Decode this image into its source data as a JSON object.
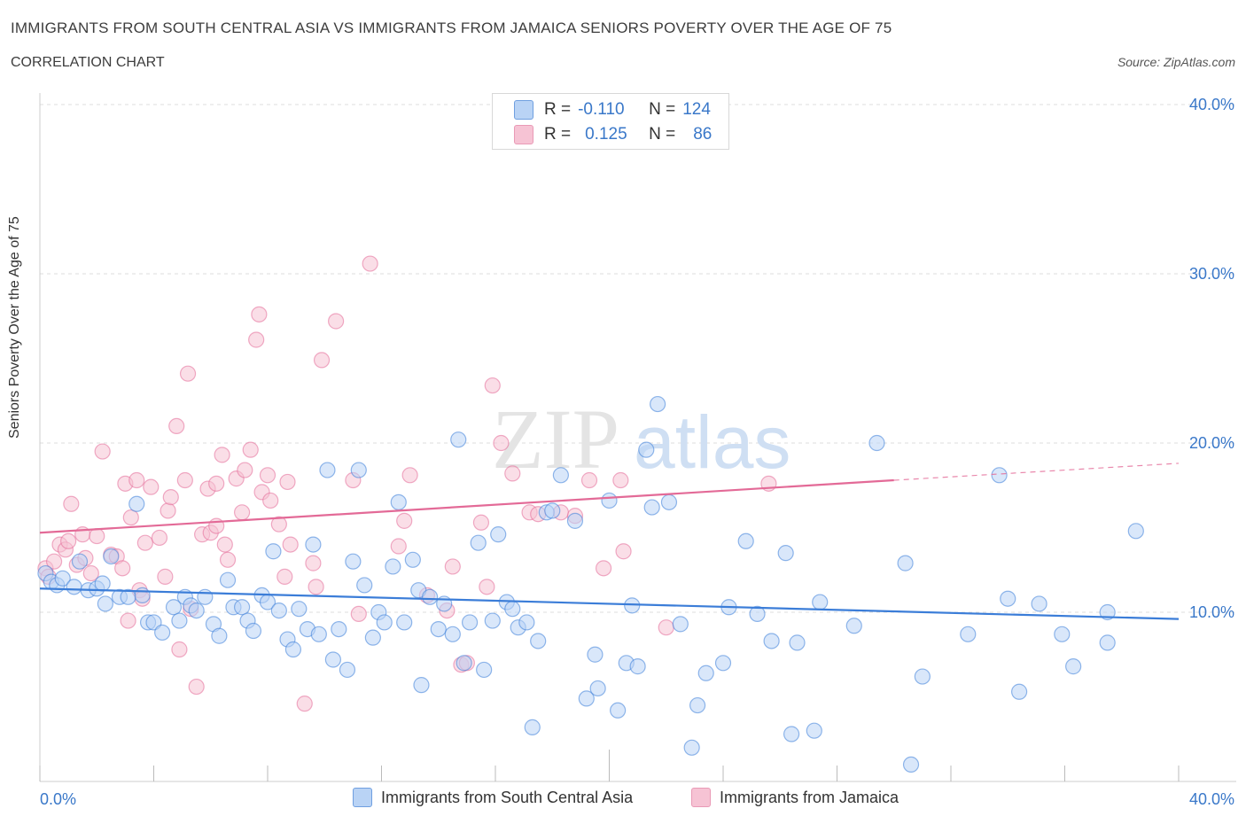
{
  "header": {
    "title": "IMMIGRANTS FROM SOUTH CENTRAL ASIA VS IMMIGRANTS FROM JAMAICA SENIORS POVERTY OVER THE AGE OF 75",
    "subtitle": "CORRELATION CHART",
    "source": "Source: ZipAtlas.com"
  },
  "watermark": {
    "zip": "ZIP",
    "atlas": "atlas"
  },
  "legend": {
    "blue": {
      "r_label": "R =",
      "r_value": "-0.110",
      "n_label": "N =",
      "n_value": "124"
    },
    "pink": {
      "r_label": "R =",
      "r_value": "0.125",
      "n_label": "N =",
      "n_value": "86"
    }
  },
  "colors": {
    "blue": "#3b7dd8",
    "blue_fill": "#b9d3f5",
    "pink": "#e36a97",
    "pink_fill": "#f6c3d4",
    "tick_text": "#3a78c9",
    "grid": "#dddddd"
  },
  "chart_data": {
    "type": "scatter",
    "title": "IMMIGRANTS FROM SOUTH CENTRAL ASIA VS IMMIGRANTS FROM JAMAICA SENIORS POVERTY OVER THE AGE OF 75",
    "ylabel": "Seniors Poverty Over the Age of 75",
    "xlabel": "",
    "xlim": [
      0,
      40
    ],
    "ylim": [
      0,
      40
    ],
    "x_tick_labels": [
      "0.0%",
      "40.0%"
    ],
    "y_tick_labels": [
      "10.0%",
      "20.0%",
      "30.0%",
      "40.0%"
    ],
    "y_ticks": [
      10,
      20,
      30,
      40
    ],
    "grid": true,
    "legend_position": "top-center",
    "series": [
      {
        "name": "Immigrants from South Central Asia",
        "color": "#3b7dd8",
        "trend": {
          "x": [
            0,
            40
          ],
          "y": [
            11.4,
            9.6
          ]
        },
        "points": [
          [
            0.2,
            12.3
          ],
          [
            0.4,
            11.8
          ],
          [
            0.6,
            11.6
          ],
          [
            0.8,
            12.0
          ],
          [
            1.2,
            11.5
          ],
          [
            1.4,
            13.0
          ],
          [
            1.7,
            11.3
          ],
          [
            2.0,
            11.4
          ],
          [
            2.2,
            11.7
          ],
          [
            2.3,
            10.5
          ],
          [
            2.5,
            13.3
          ],
          [
            2.8,
            10.9
          ],
          [
            3.1,
            10.9
          ],
          [
            3.4,
            16.4
          ],
          [
            3.6,
            11.0
          ],
          [
            3.8,
            9.4
          ],
          [
            4.0,
            9.4
          ],
          [
            4.3,
            8.8
          ],
          [
            4.7,
            10.3
          ],
          [
            4.9,
            9.5
          ],
          [
            5.1,
            10.9
          ],
          [
            5.3,
            10.4
          ],
          [
            5.5,
            10.1
          ],
          [
            5.8,
            10.9
          ],
          [
            6.1,
            9.3
          ],
          [
            6.3,
            8.6
          ],
          [
            6.6,
            11.9
          ],
          [
            6.8,
            10.3
          ],
          [
            7.1,
            10.3
          ],
          [
            7.3,
            9.5
          ],
          [
            7.5,
            8.9
          ],
          [
            7.8,
            11.0
          ],
          [
            8.0,
            10.6
          ],
          [
            8.2,
            13.6
          ],
          [
            8.4,
            10.1
          ],
          [
            8.7,
            8.4
          ],
          [
            8.9,
            7.8
          ],
          [
            9.1,
            10.2
          ],
          [
            9.4,
            9.0
          ],
          [
            9.6,
            14.0
          ],
          [
            9.8,
            8.7
          ],
          [
            10.1,
            18.4
          ],
          [
            10.3,
            7.2
          ],
          [
            10.5,
            9.0
          ],
          [
            10.8,
            6.6
          ],
          [
            11.0,
            13.0
          ],
          [
            11.2,
            18.4
          ],
          [
            11.4,
            11.6
          ],
          [
            11.7,
            8.5
          ],
          [
            11.9,
            10.0
          ],
          [
            12.1,
            9.4
          ],
          [
            12.4,
            12.7
          ],
          [
            12.6,
            16.5
          ],
          [
            12.8,
            9.4
          ],
          [
            13.1,
            13.1
          ],
          [
            13.3,
            11.3
          ],
          [
            13.4,
            5.7
          ],
          [
            13.7,
            10.9
          ],
          [
            14.0,
            9.0
          ],
          [
            14.2,
            10.5
          ],
          [
            14.5,
            8.7
          ],
          [
            14.7,
            20.2
          ],
          [
            14.9,
            7.0
          ],
          [
            15.1,
            9.4
          ],
          [
            15.4,
            14.1
          ],
          [
            15.6,
            6.6
          ],
          [
            15.9,
            9.5
          ],
          [
            16.1,
            14.6
          ],
          [
            16.4,
            10.6
          ],
          [
            16.6,
            10.2
          ],
          [
            16.8,
            9.1
          ],
          [
            17.1,
            9.4
          ],
          [
            17.3,
            3.2
          ],
          [
            17.5,
            8.3
          ],
          [
            17.8,
            15.9
          ],
          [
            18.0,
            16.0
          ],
          [
            18.3,
            18.1
          ],
          [
            18.8,
            15.4
          ],
          [
            19.2,
            4.9
          ],
          [
            19.5,
            7.5
          ],
          [
            19.6,
            5.5
          ],
          [
            20.0,
            16.6
          ],
          [
            20.3,
            4.2
          ],
          [
            20.6,
            7.0
          ],
          [
            20.8,
            10.4
          ],
          [
            21.0,
            6.8
          ],
          [
            21.3,
            19.6
          ],
          [
            21.5,
            16.2
          ],
          [
            21.7,
            22.3
          ],
          [
            22.1,
            16.5
          ],
          [
            22.5,
            9.3
          ],
          [
            22.9,
            2.0
          ],
          [
            23.1,
            4.5
          ],
          [
            23.4,
            6.4
          ],
          [
            24.0,
            7.0
          ],
          [
            24.2,
            10.3
          ],
          [
            24.8,
            14.2
          ],
          [
            25.2,
            9.9
          ],
          [
            25.7,
            8.3
          ],
          [
            26.2,
            13.5
          ],
          [
            26.4,
            2.8
          ],
          [
            26.6,
            8.2
          ],
          [
            27.2,
            3.0
          ],
          [
            27.4,
            10.6
          ],
          [
            28.6,
            9.2
          ],
          [
            29.4,
            20.0
          ],
          [
            30.4,
            12.9
          ],
          [
            30.6,
            1.0
          ],
          [
            31.0,
            6.2
          ],
          [
            32.6,
            8.7
          ],
          [
            33.7,
            18.1
          ],
          [
            34.0,
            10.8
          ],
          [
            34.4,
            5.3
          ],
          [
            35.1,
            10.5
          ],
          [
            35.9,
            8.7
          ],
          [
            36.3,
            6.8
          ],
          [
            37.5,
            10.0
          ],
          [
            37.5,
            8.2
          ],
          [
            38.5,
            14.8
          ]
        ]
      },
      {
        "name": "Immigrants from Jamaica",
        "color": "#e36a97",
        "trend": {
          "x": [
            0,
            30
          ],
          "y": [
            14.7,
            17.8
          ]
        },
        "trend_dashed_to": {
          "x": 40,
          "y": 18.8
        },
        "points": [
          [
            0.2,
            12.6
          ],
          [
            0.3,
            12.1
          ],
          [
            0.5,
            13.0
          ],
          [
            0.7,
            14.0
          ],
          [
            0.9,
            13.7
          ],
          [
            1.0,
            14.2
          ],
          [
            1.1,
            16.4
          ],
          [
            1.3,
            12.8
          ],
          [
            1.5,
            14.6
          ],
          [
            1.6,
            13.2
          ],
          [
            1.8,
            12.3
          ],
          [
            2.0,
            14.5
          ],
          [
            2.2,
            19.5
          ],
          [
            2.5,
            13.4
          ],
          [
            2.7,
            13.3
          ],
          [
            2.9,
            12.6
          ],
          [
            3.0,
            17.6
          ],
          [
            3.1,
            9.5
          ],
          [
            3.2,
            15.6
          ],
          [
            3.4,
            17.8
          ],
          [
            3.5,
            11.3
          ],
          [
            3.6,
            10.8
          ],
          [
            3.7,
            14.1
          ],
          [
            3.9,
            17.4
          ],
          [
            4.2,
            14.4
          ],
          [
            4.4,
            12.1
          ],
          [
            4.5,
            16.0
          ],
          [
            4.6,
            16.8
          ],
          [
            4.8,
            21.0
          ],
          [
            4.9,
            7.8
          ],
          [
            5.1,
            17.8
          ],
          [
            5.2,
            24.1
          ],
          [
            5.3,
            10.2
          ],
          [
            5.5,
            5.6
          ],
          [
            5.7,
            14.6
          ],
          [
            5.9,
            17.3
          ],
          [
            6.0,
            14.7
          ],
          [
            6.2,
            17.6
          ],
          [
            6.2,
            15.1
          ],
          [
            6.4,
            19.3
          ],
          [
            6.5,
            14.0
          ],
          [
            6.6,
            13.1
          ],
          [
            6.9,
            17.9
          ],
          [
            7.1,
            15.9
          ],
          [
            7.2,
            18.4
          ],
          [
            7.4,
            19.6
          ],
          [
            7.6,
            26.1
          ],
          [
            7.7,
            27.6
          ],
          [
            7.8,
            17.1
          ],
          [
            8.0,
            18.1
          ],
          [
            8.1,
            16.6
          ],
          [
            8.4,
            15.2
          ],
          [
            8.6,
            12.1
          ],
          [
            8.7,
            17.7
          ],
          [
            8.8,
            14.0
          ],
          [
            9.3,
            4.6
          ],
          [
            9.6,
            12.9
          ],
          [
            9.7,
            11.5
          ],
          [
            9.9,
            24.9
          ],
          [
            10.4,
            27.2
          ],
          [
            11.0,
            17.8
          ],
          [
            11.2,
            9.9
          ],
          [
            11.6,
            30.6
          ],
          [
            12.6,
            13.9
          ],
          [
            12.8,
            15.4
          ],
          [
            13.0,
            18.1
          ],
          [
            13.6,
            11.0
          ],
          [
            14.3,
            10.1
          ],
          [
            14.5,
            12.7
          ],
          [
            14.8,
            6.9
          ],
          [
            15.0,
            7.0
          ],
          [
            15.5,
            15.3
          ],
          [
            15.7,
            11.5
          ],
          [
            15.9,
            23.4
          ],
          [
            16.2,
            20.0
          ],
          [
            16.6,
            18.2
          ],
          [
            17.2,
            15.9
          ],
          [
            17.5,
            15.8
          ],
          [
            18.3,
            15.9
          ],
          [
            18.8,
            15.7
          ],
          [
            19.3,
            17.8
          ],
          [
            19.8,
            12.6
          ],
          [
            20.4,
            17.8
          ],
          [
            20.5,
            13.6
          ],
          [
            22.0,
            9.1
          ],
          [
            25.6,
            17.6
          ]
        ]
      }
    ]
  },
  "bottom_legend": {
    "blue_label": "Immigrants from South Central Asia",
    "pink_label": "Immigrants from Jamaica"
  }
}
